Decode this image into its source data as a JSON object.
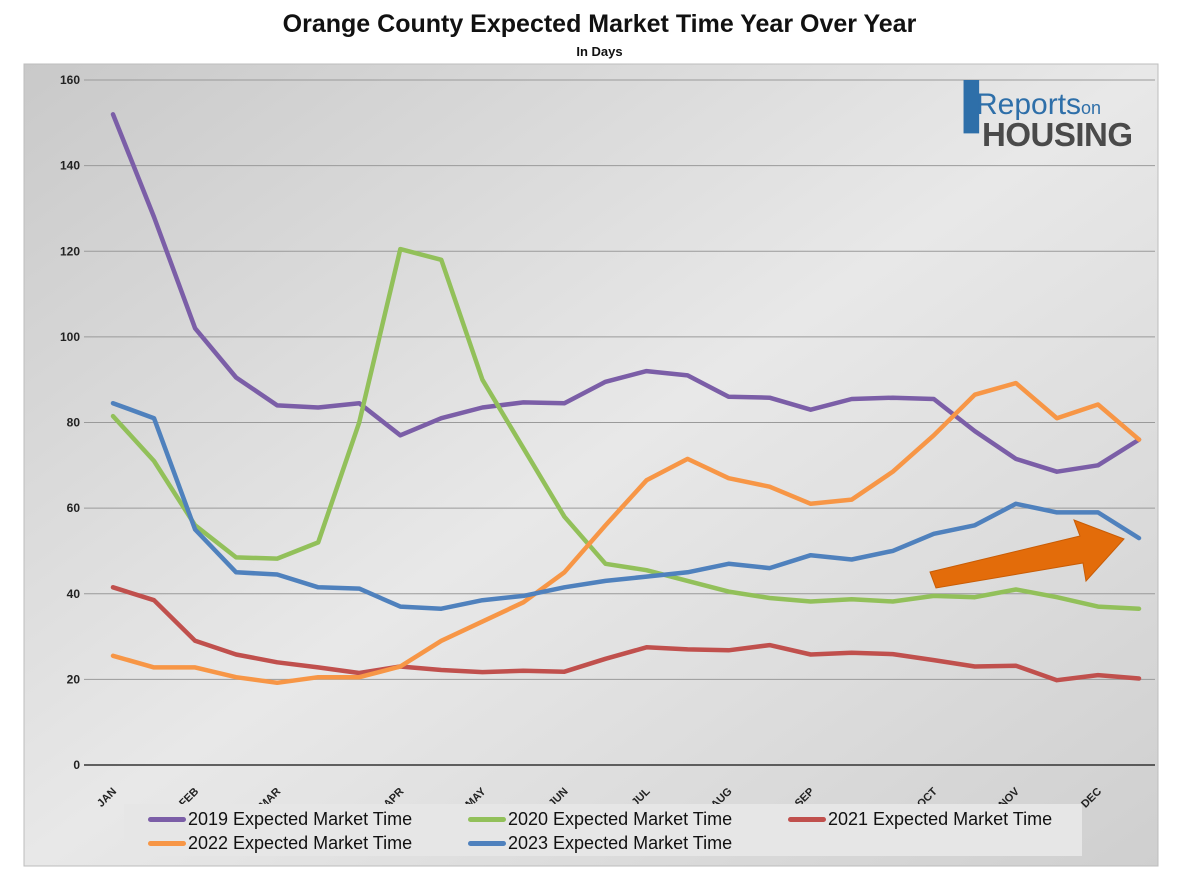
{
  "title": "Orange County Expected Market Time Year Over Year",
  "subtitle": "In Days",
  "logo": {
    "line1": "Reports",
    "line1_suffix": "on",
    "line2": "HOUSING"
  },
  "colors": {
    "plot_background": "#d6d6d6",
    "gridline": "#9a9a9a",
    "axis": "#333333",
    "arrow": "#e36c0a"
  },
  "chart_data": {
    "type": "line",
    "title": "Orange County Expected Market Time Year Over Year",
    "subtitle": "In Days",
    "xlabel": "",
    "ylabel": "",
    "ylim": [
      0,
      160
    ],
    "yticks": [
      0,
      20,
      40,
      60,
      80,
      100,
      120,
      140,
      160
    ],
    "month_labels": [
      "JAN",
      "FEB",
      "MAR",
      "APR",
      "MAY",
      "JUN",
      "JUL",
      "AUG",
      "SEP",
      "OCT",
      "NOV",
      "DEC"
    ],
    "month_label_positions": [
      0,
      2,
      4,
      7,
      9,
      11,
      13,
      15,
      17,
      20,
      22,
      24
    ],
    "x": [
      0,
      1,
      2,
      3,
      4,
      5,
      6,
      7,
      8,
      9,
      10,
      11,
      12,
      13,
      14,
      15,
      16,
      17,
      18,
      19,
      20,
      21,
      22,
      23,
      24,
      25
    ],
    "grid": true,
    "legend_position": "bottom",
    "annotation": "orange arrow pointing up-right toward the 2023 line",
    "series": [
      {
        "name": "2019 Expected Market Time",
        "color": "#7b5ea7",
        "values": [
          152,
          128,
          102,
          90.5,
          84,
          83.5,
          84.5,
          77,
          81,
          83.5,
          84.7,
          84.5,
          89.5,
          92,
          91,
          86,
          85.8,
          83,
          85.5,
          85.8,
          85.5,
          78,
          71.5,
          68.5,
          70,
          76
        ]
      },
      {
        "name": "2020 Expected Market Time",
        "color": "#92c05a",
        "values": [
          81.5,
          71,
          56,
          48.5,
          48.2,
          52,
          80,
          120.5,
          118,
          90,
          74,
          58,
          47,
          45.5,
          43,
          40.5,
          39,
          38.2,
          38.7,
          38.2,
          39.5,
          39.2,
          41,
          39.2,
          37,
          36.5
        ]
      },
      {
        "name": "2021 Expected Market Time",
        "color": "#c0504d",
        "values": [
          41.5,
          38.5,
          29,
          25.8,
          24,
          22.8,
          21.5,
          23,
          22.2,
          21.7,
          22,
          21.8,
          24.8,
          27.5,
          27,
          26.8,
          28,
          25.8,
          26.2,
          25.9,
          24.5,
          23,
          23.2,
          19.8,
          21,
          20.2
        ]
      },
      {
        "name": "2022 Expected Market Time",
        "color": "#f79646",
        "values": [
          25.5,
          22.8,
          22.8,
          20.5,
          19.2,
          20.5,
          20.5,
          23,
          29,
          33.5,
          38,
          45,
          56,
          66.5,
          71.5,
          67,
          65,
          61,
          62,
          68.5,
          77,
          86.5,
          89.2,
          81,
          84.2,
          76
        ]
      },
      {
        "name": "2023 Expected Market Time",
        "color": "#4f81bd",
        "values": [
          84.5,
          81,
          55,
          45,
          44.5,
          41.5,
          41.2,
          37,
          36.5,
          38.5,
          39.5,
          41.5,
          43,
          44,
          45,
          47,
          46,
          49,
          48,
          50,
          54,
          56,
          61,
          59,
          59,
          53
        ]
      }
    ]
  }
}
